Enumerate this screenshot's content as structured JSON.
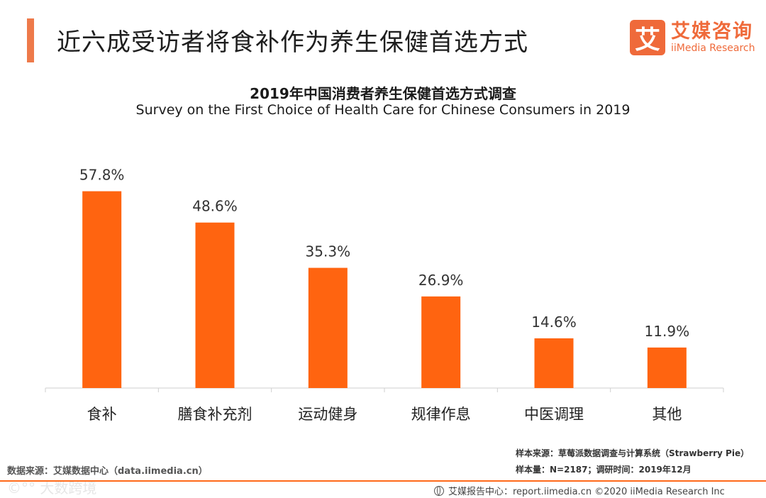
{
  "header": {
    "title": "近六成受访者将食补作为养生保健首选方式",
    "logo_mark": "艾",
    "logo_cn": "艾媒咨询",
    "logo_en": "iiMedia Research"
  },
  "chart_data": {
    "type": "bar",
    "title": "2019年中国消费者养生保健首选方式调查",
    "subtitle": "Survey on the First Choice of Health Care for Chinese Consumers in 2019",
    "categories": [
      "食补",
      "膳食补充剂",
      "运动健身",
      "规律作息",
      "中医调理",
      "其他"
    ],
    "values": [
      57.8,
      48.6,
      35.3,
      26.9,
      14.6,
      11.9
    ],
    "value_labels": [
      "57.8%",
      "48.6%",
      "35.3%",
      "26.9%",
      "14.6%",
      "11.9%"
    ],
    "xlabel": "",
    "ylabel": "",
    "ylim": [
      0,
      65
    ],
    "grid": false,
    "bar_color": "#ff6410"
  },
  "footnotes": {
    "sample_source": "样本来源：草莓派数据调查与计算系统（Strawberry Pie）",
    "sample_size": "样本量：N=2187；调研时间：2019年12月",
    "data_source": "数据来源：艾媒数据中心（data.iimedia.cn）",
    "watermark": "©°° 大数跨境",
    "footer": "艾媒报告中心：report.iimedia.cn ©2020 iiMedia Research Inc"
  }
}
